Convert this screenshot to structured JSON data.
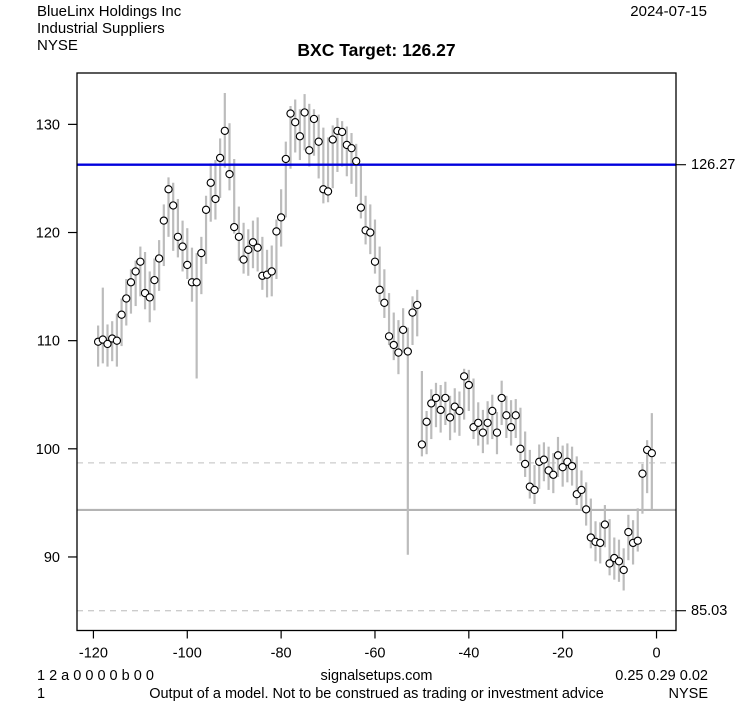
{
  "header": {
    "company": "BlueLinx Holdings Inc",
    "industry": "Industrial Suppliers",
    "exchange": "NYSE",
    "date": "2024-07-15"
  },
  "title": "BXC Target: 126.27",
  "footer": {
    "row1_left": "1 2 a 0 0 0 0 b 0 0",
    "row1_center": "signalsetups.com",
    "row1_right": "0.25 0.29 0.02",
    "row2_left": "1",
    "row2_center": "Output of a model. Not to be construed as trading or investment advice",
    "row2_right": "NYSE"
  },
  "chart_data": {
    "type": "bar",
    "subtype": "high-low-close",
    "title": "BXC Target: 126.27",
    "xlabel": "",
    "ylabel": "",
    "x_ticks": [
      -120,
      -100,
      -80,
      -60,
      -40,
      -20,
      0
    ],
    "y_ticks": [
      90,
      100,
      110,
      120,
      130
    ],
    "xlim": [
      -123.5,
      4.15
    ],
    "ylim": [
      83.2,
      134.75
    ],
    "grid": false,
    "bar_color": "#bcbcbc",
    "close_marker": {
      "fill": "#ffffff",
      "stroke": "#000000"
    },
    "levels": [
      {
        "name": "target-line",
        "value": 126.27,
        "label": "126.27",
        "style": "solid",
        "color": "#0000dd",
        "width": 2.4,
        "layer": "above"
      },
      {
        "name": "upper-dashed-level",
        "value": 98.7,
        "label": "",
        "style": "dashed",
        "color": "#cccccc",
        "width": 1.3,
        "layer": "below"
      },
      {
        "name": "gray-level",
        "value": 94.35,
        "label": "",
        "style": "solid",
        "color": "#b4b4b4",
        "width": 2.2,
        "layer": "below"
      },
      {
        "name": "lower-dashed-level",
        "value": 85.03,
        "label": "85.03",
        "style": "dashed",
        "color": "#cccccc",
        "width": 1.3,
        "layer": "below"
      }
    ],
    "bars": [
      [
        -119,
        111.4,
        107.6,
        109.9
      ],
      [
        -118,
        114.9,
        107.9,
        110.1
      ],
      [
        -117,
        111.5,
        107.6,
        109.7
      ],
      [
        -116,
        111.8,
        108.1,
        110.2
      ],
      [
        -115,
        112.5,
        107.6,
        110.0
      ],
      [
        -114,
        113.9,
        109.5,
        112.4
      ],
      [
        -113,
        115.7,
        111.4,
        113.9
      ],
      [
        -112,
        116.6,
        112.5,
        115.4
      ],
      [
        -111,
        117.4,
        113.2,
        116.4
      ],
      [
        -110,
        118.7,
        114.1,
        117.3
      ],
      [
        -109,
        118.2,
        112.9,
        114.4
      ],
      [
        -108,
        116.4,
        111.7,
        114.0
      ],
      [
        -107,
        117.6,
        112.8,
        115.6
      ],
      [
        -106,
        119.3,
        114.6,
        117.6
      ],
      [
        -105,
        122.6,
        116.9,
        121.1
      ],
      [
        -104,
        125.1,
        119.6,
        124.0
      ],
      [
        -103,
        124.6,
        118.3,
        122.5
      ],
      [
        -102,
        123.1,
        117.7,
        119.6
      ],
      [
        -101,
        121.1,
        116.4,
        118.7
      ],
      [
        -100,
        120.4,
        115.7,
        117.0
      ],
      [
        -99,
        118.6,
        113.6,
        115.4
      ],
      [
        -98,
        118.1,
        106.5,
        115.4
      ],
      [
        -97,
        119.6,
        114.3,
        118.1
      ],
      [
        -96,
        123.4,
        117.1,
        122.1
      ],
      [
        -95,
        126.4,
        121.0,
        124.6
      ],
      [
        -94,
        126.7,
        121.2,
        123.1
      ],
      [
        -93,
        128.7,
        123.2,
        126.9
      ],
      [
        -92,
        132.9,
        126.0,
        129.4
      ],
      [
        -91,
        130.1,
        123.9,
        125.4
      ],
      [
        -90,
        126.8,
        119.9,
        120.5
      ],
      [
        -89,
        122.4,
        117.4,
        119.6
      ],
      [
        -88,
        120.9,
        116.2,
        117.5
      ],
      [
        -87,
        120.3,
        116.0,
        118.4
      ],
      [
        -86,
        121.1,
        116.7,
        119.1
      ],
      [
        -85,
        121.4,
        116.4,
        118.6
      ],
      [
        -84,
        119.6,
        114.7,
        116.0
      ],
      [
        -83,
        118.4,
        114.0,
        116.1
      ],
      [
        -82,
        118.8,
        114.1,
        116.4
      ],
      [
        -81,
        121.2,
        115.7,
        120.1
      ],
      [
        -80,
        124.0,
        118.7,
        121.4
      ],
      [
        -79,
        128.4,
        121.4,
        126.8
      ],
      [
        -78,
        131.7,
        125.9,
        131.0
      ],
      [
        -77,
        132.3,
        127.4,
        130.2
      ],
      [
        -76,
        131.4,
        126.7,
        128.9
      ],
      [
        -75,
        132.8,
        127.6,
        131.1
      ],
      [
        -74,
        131.9,
        126.1,
        127.6
      ],
      [
        -73,
        131.4,
        127.1,
        130.5
      ],
      [
        -72,
        130.9,
        125.0,
        128.4
      ],
      [
        -71,
        129.7,
        122.7,
        124.0
      ],
      [
        -70,
        128.8,
        122.8,
        123.8
      ],
      [
        -69,
        129.9,
        124.1,
        128.6
      ],
      [
        -68,
        130.6,
        125.6,
        129.4
      ],
      [
        -67,
        130.3,
        126.1,
        129.3
      ],
      [
        -66,
        129.8,
        125.2,
        128.1
      ],
      [
        -65,
        129.2,
        124.5,
        127.8
      ],
      [
        -64,
        128.2,
        123.3,
        126.6
      ],
      [
        -63,
        126.2,
        121.3,
        122.3
      ],
      [
        -62,
        123.4,
        118.9,
        120.2
      ],
      [
        -61,
        122.6,
        118.0,
        120.0
      ],
      [
        -60,
        121.2,
        116.2,
        117.3
      ],
      [
        -59,
        118.7,
        113.6,
        114.7
      ],
      [
        -58,
        116.6,
        112.1,
        113.5
      ],
      [
        -57,
        114.4,
        109.6,
        110.4
      ],
      [
        -56,
        112.6,
        108.2,
        109.6
      ],
      [
        -55,
        111.9,
        106.9,
        108.9
      ],
      [
        -54,
        113.0,
        108.9,
        111.0
      ],
      [
        -53,
        111.2,
        90.2,
        109.0
      ],
      [
        -52,
        114.1,
        109.6,
        112.6
      ],
      [
        -51,
        114.7,
        110.4,
        113.3
      ],
      [
        -50,
        107.2,
        99.3,
        100.4
      ],
      [
        -49,
        103.5,
        99.5,
        102.5
      ],
      [
        -48,
        105.5,
        100.9,
        104.2
      ],
      [
        -47,
        106.1,
        102.0,
        104.7
      ],
      [
        -46,
        105.9,
        101.5,
        103.6
      ],
      [
        -45,
        106.2,
        102.2,
        104.7
      ],
      [
        -44,
        104.9,
        100.8,
        102.9
      ],
      [
        -43,
        105.6,
        101.5,
        103.9
      ],
      [
        -42,
        105.3,
        101.2,
        103.5
      ],
      [
        -41,
        107.4,
        102.7,
        106.7
      ],
      [
        -40,
        107.3,
        103.5,
        105.9
      ],
      [
        -39,
        106.5,
        100.9,
        102.0
      ],
      [
        -38,
        104.3,
        100.3,
        102.4
      ],
      [
        -37,
        103.6,
        99.6,
        101.5
      ],
      [
        -36,
        104.4,
        100.4,
        102.4
      ],
      [
        -35,
        105.0,
        100.9,
        103.5
      ],
      [
        -34,
        103.4,
        99.5,
        101.5
      ],
      [
        -33,
        106.3,
        102.2,
        104.7
      ],
      [
        -32,
        104.9,
        101.0,
        103.1
      ],
      [
        -31,
        104.5,
        100.3,
        102.0
      ],
      [
        -30,
        104.6,
        101.0,
        103.1
      ],
      [
        -29,
        103.8,
        98.9,
        100.0
      ],
      [
        -28,
        101.6,
        97.4,
        98.6
      ],
      [
        -27,
        99.9,
        95.4,
        96.5
      ],
      [
        -26,
        98.5,
        94.9,
        96.2
      ],
      [
        -25,
        100.4,
        96.3,
        98.8
      ],
      [
        -24,
        100.6,
        97.0,
        99.0
      ],
      [
        -23,
        100.2,
        96.2,
        98.0
      ],
      [
        -22,
        99.6,
        95.9,
        97.6
      ],
      [
        -21,
        101.1,
        97.4,
        99.4
      ],
      [
        -20,
        100.3,
        96.5,
        98.3
      ],
      [
        -19,
        100.5,
        96.9,
        98.8
      ],
      [
        -18,
        100.2,
        96.6,
        98.4
      ],
      [
        -17,
        99.3,
        94.8,
        95.8
      ],
      [
        -16,
        98.0,
        94.3,
        96.2
      ],
      [
        -15,
        96.9,
        92.9,
        94.4
      ],
      [
        -14,
        95.4,
        90.8,
        91.8
      ],
      [
        -13,
        93.3,
        89.6,
        91.4
      ],
      [
        -12,
        93.2,
        89.4,
        91.3
      ],
      [
        -11,
        94.8,
        90.9,
        93.0
      ],
      [
        -10,
        93.5,
        88.3,
        89.4
      ],
      [
        -9,
        91.8,
        87.9,
        89.9
      ],
      [
        -8,
        91.6,
        87.7,
        89.6
      ],
      [
        -7,
        90.8,
        86.9,
        88.8
      ],
      [
        -6,
        93.9,
        89.7,
        92.3
      ],
      [
        -5,
        93.4,
        89.3,
        91.3
      ],
      [
        -4,
        94.5,
        90.5,
        91.5
      ],
      [
        -3,
        98.6,
        94.0,
        97.7
      ],
      [
        -2,
        100.8,
        95.9,
        99.9
      ],
      [
        -1,
        103.3,
        94.4,
        99.6
      ]
    ]
  }
}
